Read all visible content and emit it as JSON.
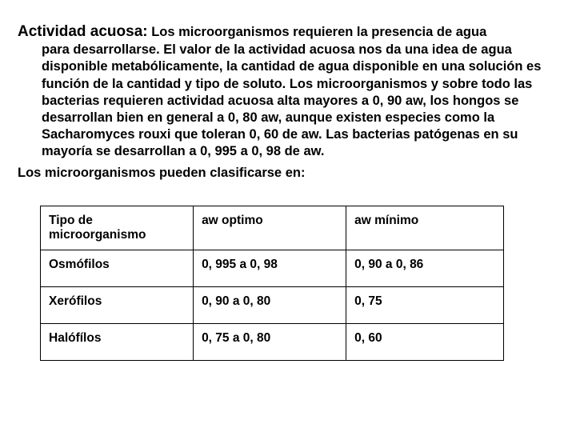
{
  "document": {
    "heading": "Actividad acuosa:",
    "body_text": " Los microorganismos requieren la presencia de agua para desarrollarse. El valor de la actividad acuosa nos da una idea de agua disponible metabólicamente, la cantidad de agua disponible en una solución es función de la cantidad y tipo de soluto. Los microorganismos y sobre todo las bacterias requieren actividad acuosa alta mayores a 0, 90 aw, los hongos se desarrollan bien en general a 0, 80 aw, aunque existen especies como la Sacharomyces rouxi  que toleran 0, 60 de aw. Las bacterias patógenas en su mayoría se desarrollan a 0, 995 a 0, 98 de aw.",
    "sub_text": "Los microorganismos pueden clasificarse en:"
  },
  "table": {
    "columns": [
      "Tipo de microorganismo",
      "aw optimo",
      "aw mínimo"
    ],
    "rows": [
      [
        "Osmófilos",
        "0, 995 a 0, 98",
        "0, 90 a 0, 86"
      ],
      [
        "Xerófilos",
        "0, 90 a 0, 80",
        "0, 75"
      ],
      [
        "Halófílos",
        "0, 75 a 0, 80",
        "0, 60"
      ]
    ],
    "header_fontsize": 15.5,
    "cell_fontsize": 15.5,
    "border_color": "#000000",
    "background_color": "#ffffff",
    "text_color": "#000000",
    "font_weight": "bold",
    "col_widths": [
      "33%",
      "33%",
      "34%"
    ]
  },
  "styling": {
    "body_background": "#ffffff",
    "text_color": "#000000",
    "heading_fontsize": 19,
    "body_fontsize": 16.5,
    "font_family": "Arial"
  }
}
